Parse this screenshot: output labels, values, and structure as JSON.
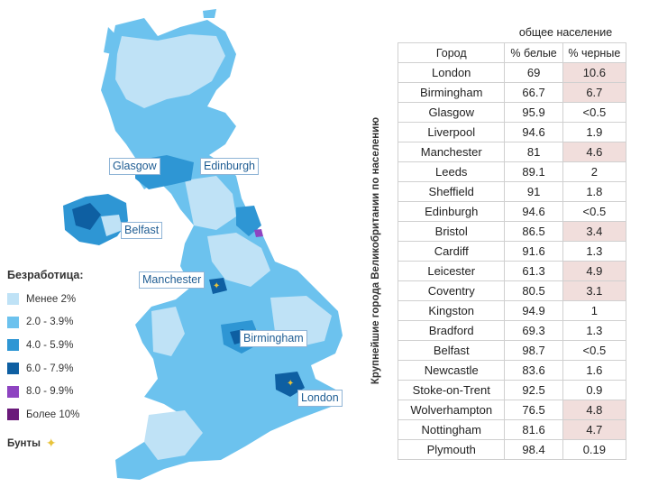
{
  "legend": {
    "title": "Безработица:",
    "items": [
      {
        "label": "Менее 2%",
        "color": "#bfe2f6"
      },
      {
        "label": "2.0 - 3.9%",
        "color": "#6cc2ee"
      },
      {
        "label": "4.0 - 5.9%",
        "color": "#2e96d4"
      },
      {
        "label": "6.0 - 7.9%",
        "color": "#0e5fa2"
      },
      {
        "label": "8.0 - 9.9%",
        "color": "#8e44c1"
      },
      {
        "label": "Более 10%",
        "color": "#6a1a7a"
      }
    ],
    "riots_label": "Бунты",
    "riots_icon": "sparkle-icon",
    "riots_color": "#e8c33a"
  },
  "map_labels": {
    "glasgow": "Glasgow",
    "edinburgh": "Edinburgh",
    "belfast": "Belfast",
    "manchester": "Manchester",
    "birmingham": "Birmingham",
    "london": "London"
  },
  "side_title": "Крупнейшие города Великобритании по населению",
  "table": {
    "top_header": "общее население",
    "col_city": "Город",
    "col_white": "% белые",
    "col_black": "% черные",
    "highlight_color": "#f1dedc",
    "rows": [
      {
        "city": "London",
        "white": "69",
        "black": "10.6",
        "hl": true
      },
      {
        "city": "Birmingham",
        "white": "66.7",
        "black": "6.7",
        "hl": true
      },
      {
        "city": "Glasgow",
        "white": "95.9",
        "black": "<0.5",
        "hl": false
      },
      {
        "city": "Liverpool",
        "white": "94.6",
        "black": "1.9",
        "hl": false
      },
      {
        "city": "Manchester",
        "white": "81",
        "black": "4.6",
        "hl": true
      },
      {
        "city": "Leeds",
        "white": "89.1",
        "black": "2",
        "hl": false
      },
      {
        "city": "Sheffield",
        "white": "91",
        "black": "1.8",
        "hl": false
      },
      {
        "city": "Edinburgh",
        "white": "94.6",
        "black": "<0.5",
        "hl": false
      },
      {
        "city": "Bristol",
        "white": "86.5",
        "black": "3.4",
        "hl": true
      },
      {
        "city": "Cardiff",
        "white": "91.6",
        "black": "1.3",
        "hl": false
      },
      {
        "city": "Leicester",
        "white": "61.3",
        "black": "4.9",
        "hl": true
      },
      {
        "city": "Coventry",
        "white": "80.5",
        "black": "3.1",
        "hl": true
      },
      {
        "city": "Kingston",
        "white": "94.9",
        "black": "1",
        "hl": false
      },
      {
        "city": "Bradford",
        "white": "69.3",
        "black": "1.3",
        "hl": false
      },
      {
        "city": "Belfast",
        "white": "98.7",
        "black": "<0.5",
        "hl": false
      },
      {
        "city": "Newcastle",
        "white": "83.6",
        "black": "1.6",
        "hl": false
      },
      {
        "city": "Stoke-on-Trent",
        "white": "92.5",
        "black": "0.9",
        "hl": false
      },
      {
        "city": "Wolverhampton",
        "white": "76.5",
        "black": "4.8",
        "hl": true
      },
      {
        "city": "Nottingham",
        "white": "81.6",
        "black": "4.7",
        "hl": true
      },
      {
        "city": "Plymouth",
        "white": "98.4",
        "black": "0.19",
        "hl": false
      }
    ]
  }
}
